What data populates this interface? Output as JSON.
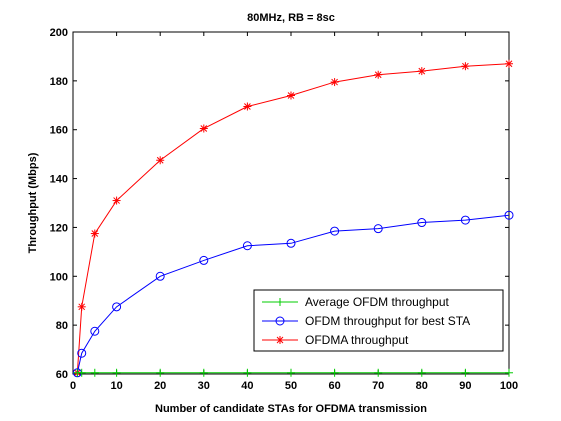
{
  "chart_data": {
    "type": "line",
    "title": "80MHz, RB = 8sc",
    "xlabel": "Number of candidate STAs for OFDMA transmission",
    "ylabel": "Throughput (Mbps)",
    "xlim": [
      0,
      100
    ],
    "ylim": [
      60,
      200
    ],
    "xticks": [
      0,
      10,
      20,
      30,
      40,
      50,
      60,
      70,
      80,
      90,
      100
    ],
    "yticks": [
      60,
      80,
      100,
      120,
      140,
      160,
      180,
      200
    ],
    "grid": false,
    "legend_position": "bottom-right",
    "x": [
      1,
      2,
      5,
      10,
      20,
      30,
      40,
      50,
      60,
      70,
      80,
      90,
      100
    ],
    "series": [
      {
        "name": "Average OFDM throughput",
        "color": "#00cc00",
        "marker": "plus",
        "values": [
          60.5,
          60.5,
          60.5,
          60.5,
          60.5,
          60.5,
          60.5,
          60.5,
          60.5,
          60.5,
          60.5,
          60.5,
          60.5
        ]
      },
      {
        "name": "OFDM throughput for best STA",
        "color": "#0000ff",
        "marker": "circle",
        "values": [
          60.5,
          68.5,
          77.5,
          87.5,
          100,
          106.5,
          112.5,
          113.5,
          118.5,
          119.5,
          122,
          123,
          125
        ]
      },
      {
        "name": "OFDMA throughput",
        "color": "#ff0000",
        "marker": "star",
        "values": [
          60.5,
          87.5,
          117.5,
          131,
          147.5,
          160.5,
          169.5,
          174,
          179.5,
          182.5,
          184,
          186,
          187
        ]
      }
    ]
  }
}
